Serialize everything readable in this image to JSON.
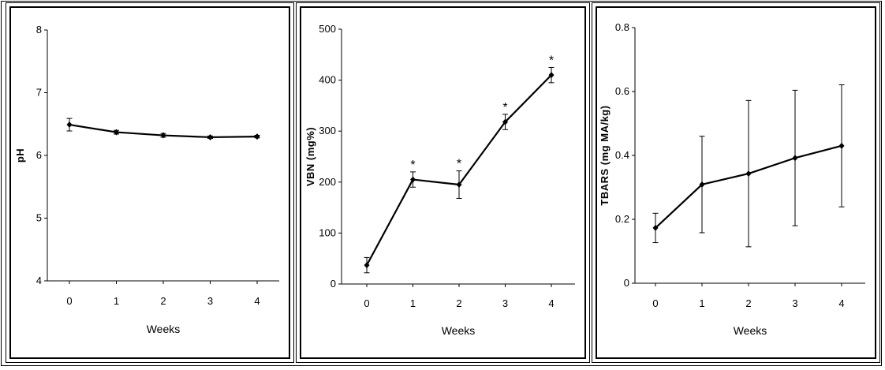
{
  "chart_data": [
    {
      "type": "line",
      "title": "",
      "xlabel": "Weeks",
      "ylabel": "pH",
      "x": [
        0,
        1,
        2,
        3,
        4
      ],
      "xticks": [
        "0",
        "1",
        "2",
        "3",
        "4"
      ],
      "ylim": [
        4,
        8
      ],
      "yticks": [
        "4",
        "5",
        "6",
        "7",
        "8"
      ],
      "ytick_values": [
        4,
        5,
        6,
        7,
        8
      ],
      "grid": false,
      "series": [
        {
          "values": [
            6.49,
            6.37,
            6.32,
            6.29,
            6.3
          ],
          "errors": [
            0.1,
            0.03,
            0.03,
            0.02,
            0.02
          ],
          "annotations": [
            "",
            "",
            "",
            "",
            ""
          ],
          "color": "#000000"
        }
      ]
    },
    {
      "type": "line",
      "title": "",
      "xlabel": "Weeks",
      "ylabel": "VBN (mg%)",
      "x": [
        0,
        1,
        2,
        3,
        4
      ],
      "xticks": [
        "0",
        "1",
        "2",
        "3",
        "4"
      ],
      "ylim": [
        0,
        500
      ],
      "yticks": [
        "0",
        "100",
        "200",
        "300",
        "400",
        "500"
      ],
      "ytick_values": [
        0,
        100,
        200,
        300,
        400,
        500
      ],
      "grid": false,
      "series": [
        {
          "values": [
            37,
            205,
            195,
            318,
            410
          ],
          "errors": [
            15,
            15,
            27,
            15,
            15
          ],
          "annotations": [
            "",
            "*",
            "*",
            "*",
            "*"
          ],
          "color": "#000000"
        }
      ]
    },
    {
      "type": "line",
      "title": "",
      "xlabel": "Weeks",
      "ylabel": "TBARS (mg MA/kg)",
      "x": [
        0,
        1,
        2,
        3,
        4
      ],
      "xticks": [
        "0",
        "1",
        "2",
        "3",
        "4"
      ],
      "ylim": [
        0,
        0.8
      ],
      "yticks": [
        "0",
        "0.2",
        "0.4",
        "0.6",
        "0.8"
      ],
      "ytick_values": [
        0,
        0.2,
        0.4,
        0.6,
        0.8
      ],
      "grid": false,
      "series": [
        {
          "values": [
            0.173,
            0.309,
            0.343,
            0.392,
            0.43
          ],
          "errors": [
            0.046,
            0.151,
            0.229,
            0.212,
            0.191
          ],
          "annotations": [
            "",
            "",
            "",
            "",
            ""
          ],
          "color": "#000000"
        }
      ]
    }
  ]
}
